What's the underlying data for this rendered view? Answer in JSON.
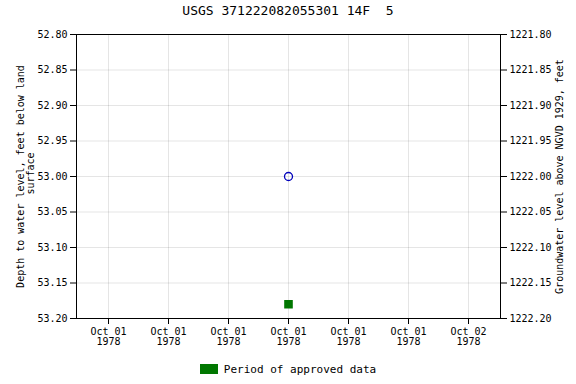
{
  "chart_data": {
    "type": "scatter",
    "title": "USGS 371222082055301 14F  5",
    "y_label": "Depth to water level, feet below land\n surface",
    "y2_label": "Groundwater level above NGVD 1929, feet",
    "categories": [
      "Oct 01\n1978",
      "Oct 01\n1978",
      "Oct 01\n1978",
      "Oct 01\n1978",
      "Oct 01\n1978",
      "Oct 01\n1978",
      "Oct 02\n1978"
    ],
    "series": [
      {
        "color": "#0000bb",
        "marker": "circle",
        "values": [
          null,
          null,
          null,
          53.0,
          null,
          null,
          null
        ]
      },
      {
        "name": "Period of approved data",
        "color": "#007700",
        "marker": "square",
        "values": [
          null,
          null,
          null,
          53.18,
          null,
          null,
          null
        ]
      }
    ],
    "ylim": [
      53.2,
      52.8
    ],
    "yticks": [
      {
        "value": 52.8,
        "label": "52.80"
      },
      {
        "value": 52.85,
        "label": "52.85"
      },
      {
        "value": 52.9,
        "label": "52.90"
      },
      {
        "value": 52.95,
        "label": "52.95"
      },
      {
        "value": 53.0,
        "label": "53.00"
      },
      {
        "value": 53.05,
        "label": "53.05"
      },
      {
        "value": 53.1,
        "label": "53.10"
      },
      {
        "value": 53.15,
        "label": "53.15"
      },
      {
        "value": 53.2,
        "label": "53.20"
      }
    ],
    "y2lim": [
      1222.2,
      1221.8
    ],
    "y2ticks": [
      {
        "value": 1222.2,
        "label": "1222.20"
      },
      {
        "value": 1222.15,
        "label": "1222.15"
      },
      {
        "value": 1222.1,
        "label": "1222.10"
      },
      {
        "value": 1222.05,
        "label": "1222.05"
      },
      {
        "value": 1222.0,
        "label": "1222.00"
      },
      {
        "value": 1221.95,
        "label": "1221.95"
      },
      {
        "value": 1221.9,
        "label": "1221.90"
      },
      {
        "value": 1221.85,
        "label": "1221.85"
      },
      {
        "value": 1221.8,
        "label": "1221.80"
      }
    ],
    "grid": true,
    "legend": "bottom"
  }
}
